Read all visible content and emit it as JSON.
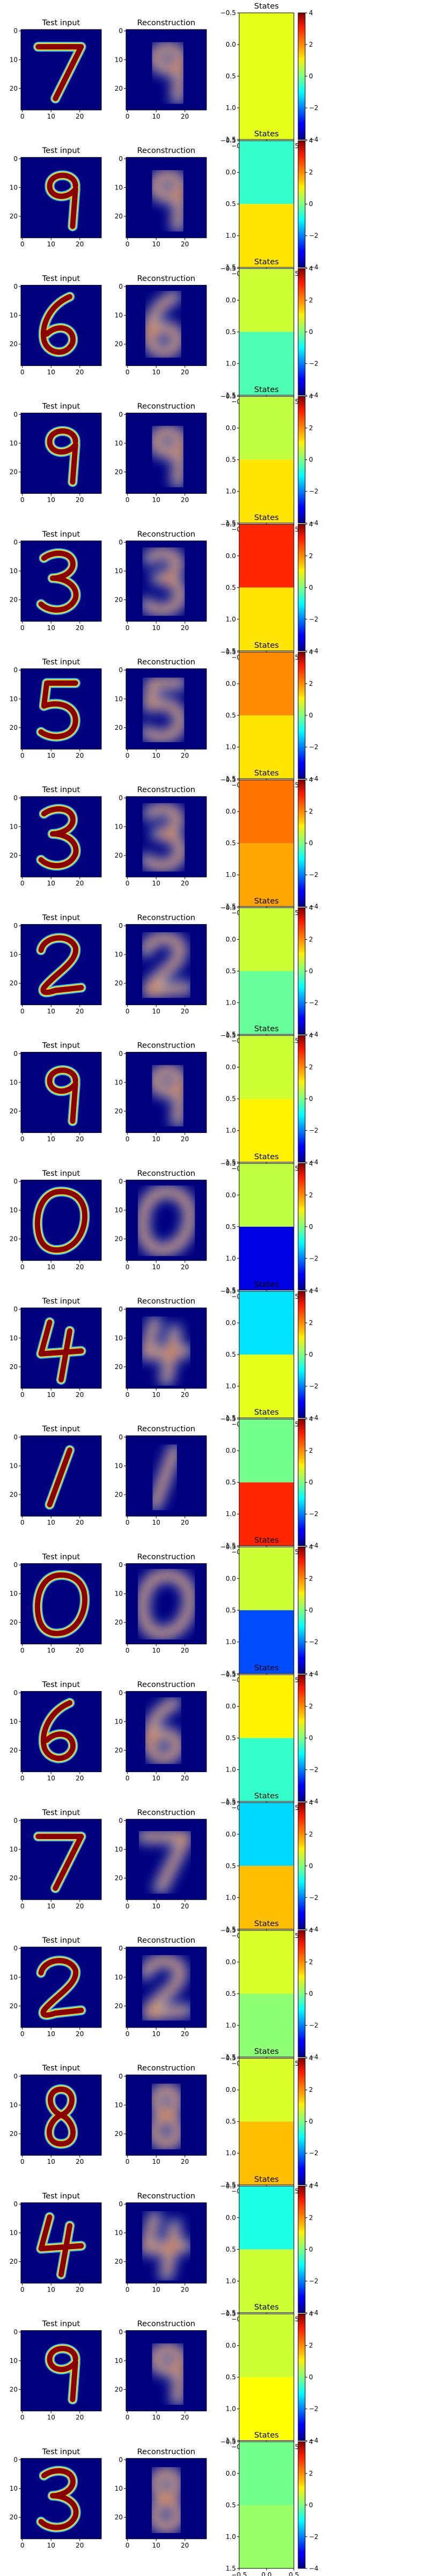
{
  "figure": {
    "titles": {
      "input": "Test input",
      "reconstruction": "Reconstruction",
      "states": "States"
    },
    "image_ticks": [
      "0",
      "10",
      "20"
    ],
    "state_xticks": [
      "−0.5",
      "0.0",
      "0.5"
    ],
    "state_yticks": [
      "−0.5",
      "0.0",
      "0.5",
      "1.0",
      "1.5"
    ],
    "colorbar_ticks": [
      "4",
      "2",
      "0",
      "−2",
      "−4"
    ],
    "colormap": "jet",
    "colorbar_range": [
      -4,
      4
    ]
  },
  "chart_data": [
    {
      "type": "heatmap",
      "row": 1,
      "subplots": [
        "Test input",
        "Reconstruction",
        "States"
      ],
      "input_digit": "7",
      "reconstruction_digit": "9",
      "states": [
        0.8,
        0.8
      ]
    },
    {
      "type": "heatmap",
      "row": 2,
      "subplots": [
        "Test input",
        "Reconstruction",
        "States"
      ],
      "input_digit": "9",
      "reconstruction_digit": "9",
      "states": [
        -0.6,
        1.2
      ]
    },
    {
      "type": "heatmap",
      "row": 3,
      "subplots": [
        "Test input",
        "Reconstruction",
        "States"
      ],
      "input_digit": "6",
      "reconstruction_digit": "6",
      "states": [
        0.6,
        -0.4
      ]
    },
    {
      "type": "heatmap",
      "row": 4,
      "subplots": [
        "Test input",
        "Reconstruction",
        "States"
      ],
      "input_digit": "9",
      "reconstruction_digit": "9",
      "states": [
        0.5,
        1.2
      ]
    },
    {
      "type": "heatmap",
      "row": 5,
      "subplots": [
        "Test input",
        "Reconstruction",
        "States"
      ],
      "input_digit": "3",
      "reconstruction_digit": "3",
      "states": [
        2.7,
        1.2
      ]
    },
    {
      "type": "heatmap",
      "row": 6,
      "subplots": [
        "Test input",
        "Reconstruction",
        "States"
      ],
      "input_digit": "5",
      "reconstruction_digit": "5",
      "states": [
        1.9,
        1.2
      ]
    },
    {
      "type": "heatmap",
      "row": 7,
      "subplots": [
        "Test input",
        "Reconstruction",
        "States"
      ],
      "input_digit": "3",
      "reconstruction_digit": "3",
      "states": [
        2.1,
        1.7
      ]
    },
    {
      "type": "heatmap",
      "row": 8,
      "subplots": [
        "Test input",
        "Reconstruction",
        "States"
      ],
      "input_digit": "2",
      "reconstruction_digit": "2",
      "states": [
        0.6,
        -0.2
      ]
    },
    {
      "type": "heatmap",
      "row": 9,
      "subplots": [
        "Test input",
        "Reconstruction",
        "States"
      ],
      "input_digit": "9",
      "reconstruction_digit": "9",
      "states": [
        0.6,
        1.1
      ]
    },
    {
      "type": "heatmap",
      "row": 10,
      "subplots": [
        "Test input",
        "Reconstruction",
        "States"
      ],
      "input_digit": "0",
      "reconstruction_digit": "0",
      "states": [
        0.5,
        -3.2
      ]
    },
    {
      "type": "heatmap",
      "row": 11,
      "subplots": [
        "Test input",
        "Reconstruction",
        "States"
      ],
      "input_digit": "4",
      "reconstruction_digit": "4",
      "states": [
        -1.2,
        0.8
      ]
    },
    {
      "type": "heatmap",
      "row": 12,
      "subplots": [
        "Test input",
        "Reconstruction",
        "States"
      ],
      "input_digit": "1",
      "reconstruction_digit": "1",
      "states": [
        -0.1,
        2.7
      ]
    },
    {
      "type": "heatmap",
      "row": 13,
      "subplots": [
        "Test input",
        "Reconstruction",
        "States"
      ],
      "input_digit": "0",
      "reconstruction_digit": "0",
      "states": [
        0.6,
        -2.4
      ]
    },
    {
      "type": "heatmap",
      "row": 14,
      "subplots": [
        "Test input",
        "Reconstruction",
        "States"
      ],
      "input_digit": "6",
      "reconstruction_digit": "6",
      "states": [
        1.1,
        -0.6
      ]
    },
    {
      "type": "heatmap",
      "row": 15,
      "subplots": [
        "Test input",
        "Reconstruction",
        "States"
      ],
      "input_digit": "7",
      "reconstruction_digit": "7",
      "states": [
        -1.3,
        1.5
      ]
    },
    {
      "type": "heatmap",
      "row": 16,
      "subplots": [
        "Test input",
        "Reconstruction",
        "States"
      ],
      "input_digit": "2",
      "reconstruction_digit": "2",
      "states": [
        0.7,
        0.1
      ]
    },
    {
      "type": "heatmap",
      "row": 17,
      "subplots": [
        "Test input",
        "Reconstruction",
        "States"
      ],
      "input_digit": "8",
      "reconstruction_digit": "8",
      "states": [
        0.7,
        1.5
      ]
    },
    {
      "type": "heatmap",
      "row": 18,
      "subplots": [
        "Test input",
        "Reconstruction",
        "States"
      ],
      "input_digit": "4",
      "reconstruction_digit": "4",
      "states": [
        -0.8,
        0.6
      ]
    },
    {
      "type": "heatmap",
      "row": 19,
      "subplots": [
        "Test input",
        "Reconstruction",
        "States"
      ],
      "input_digit": "9",
      "reconstruction_digit": "9",
      "states": [
        0.6,
        1.0
      ]
    },
    {
      "type": "heatmap",
      "row": 20,
      "subplots": [
        "Test input",
        "Reconstruction",
        "States"
      ],
      "input_digit": "3",
      "reconstruction_digit": "8",
      "states": [
        -0.1,
        0.2
      ]
    }
  ]
}
